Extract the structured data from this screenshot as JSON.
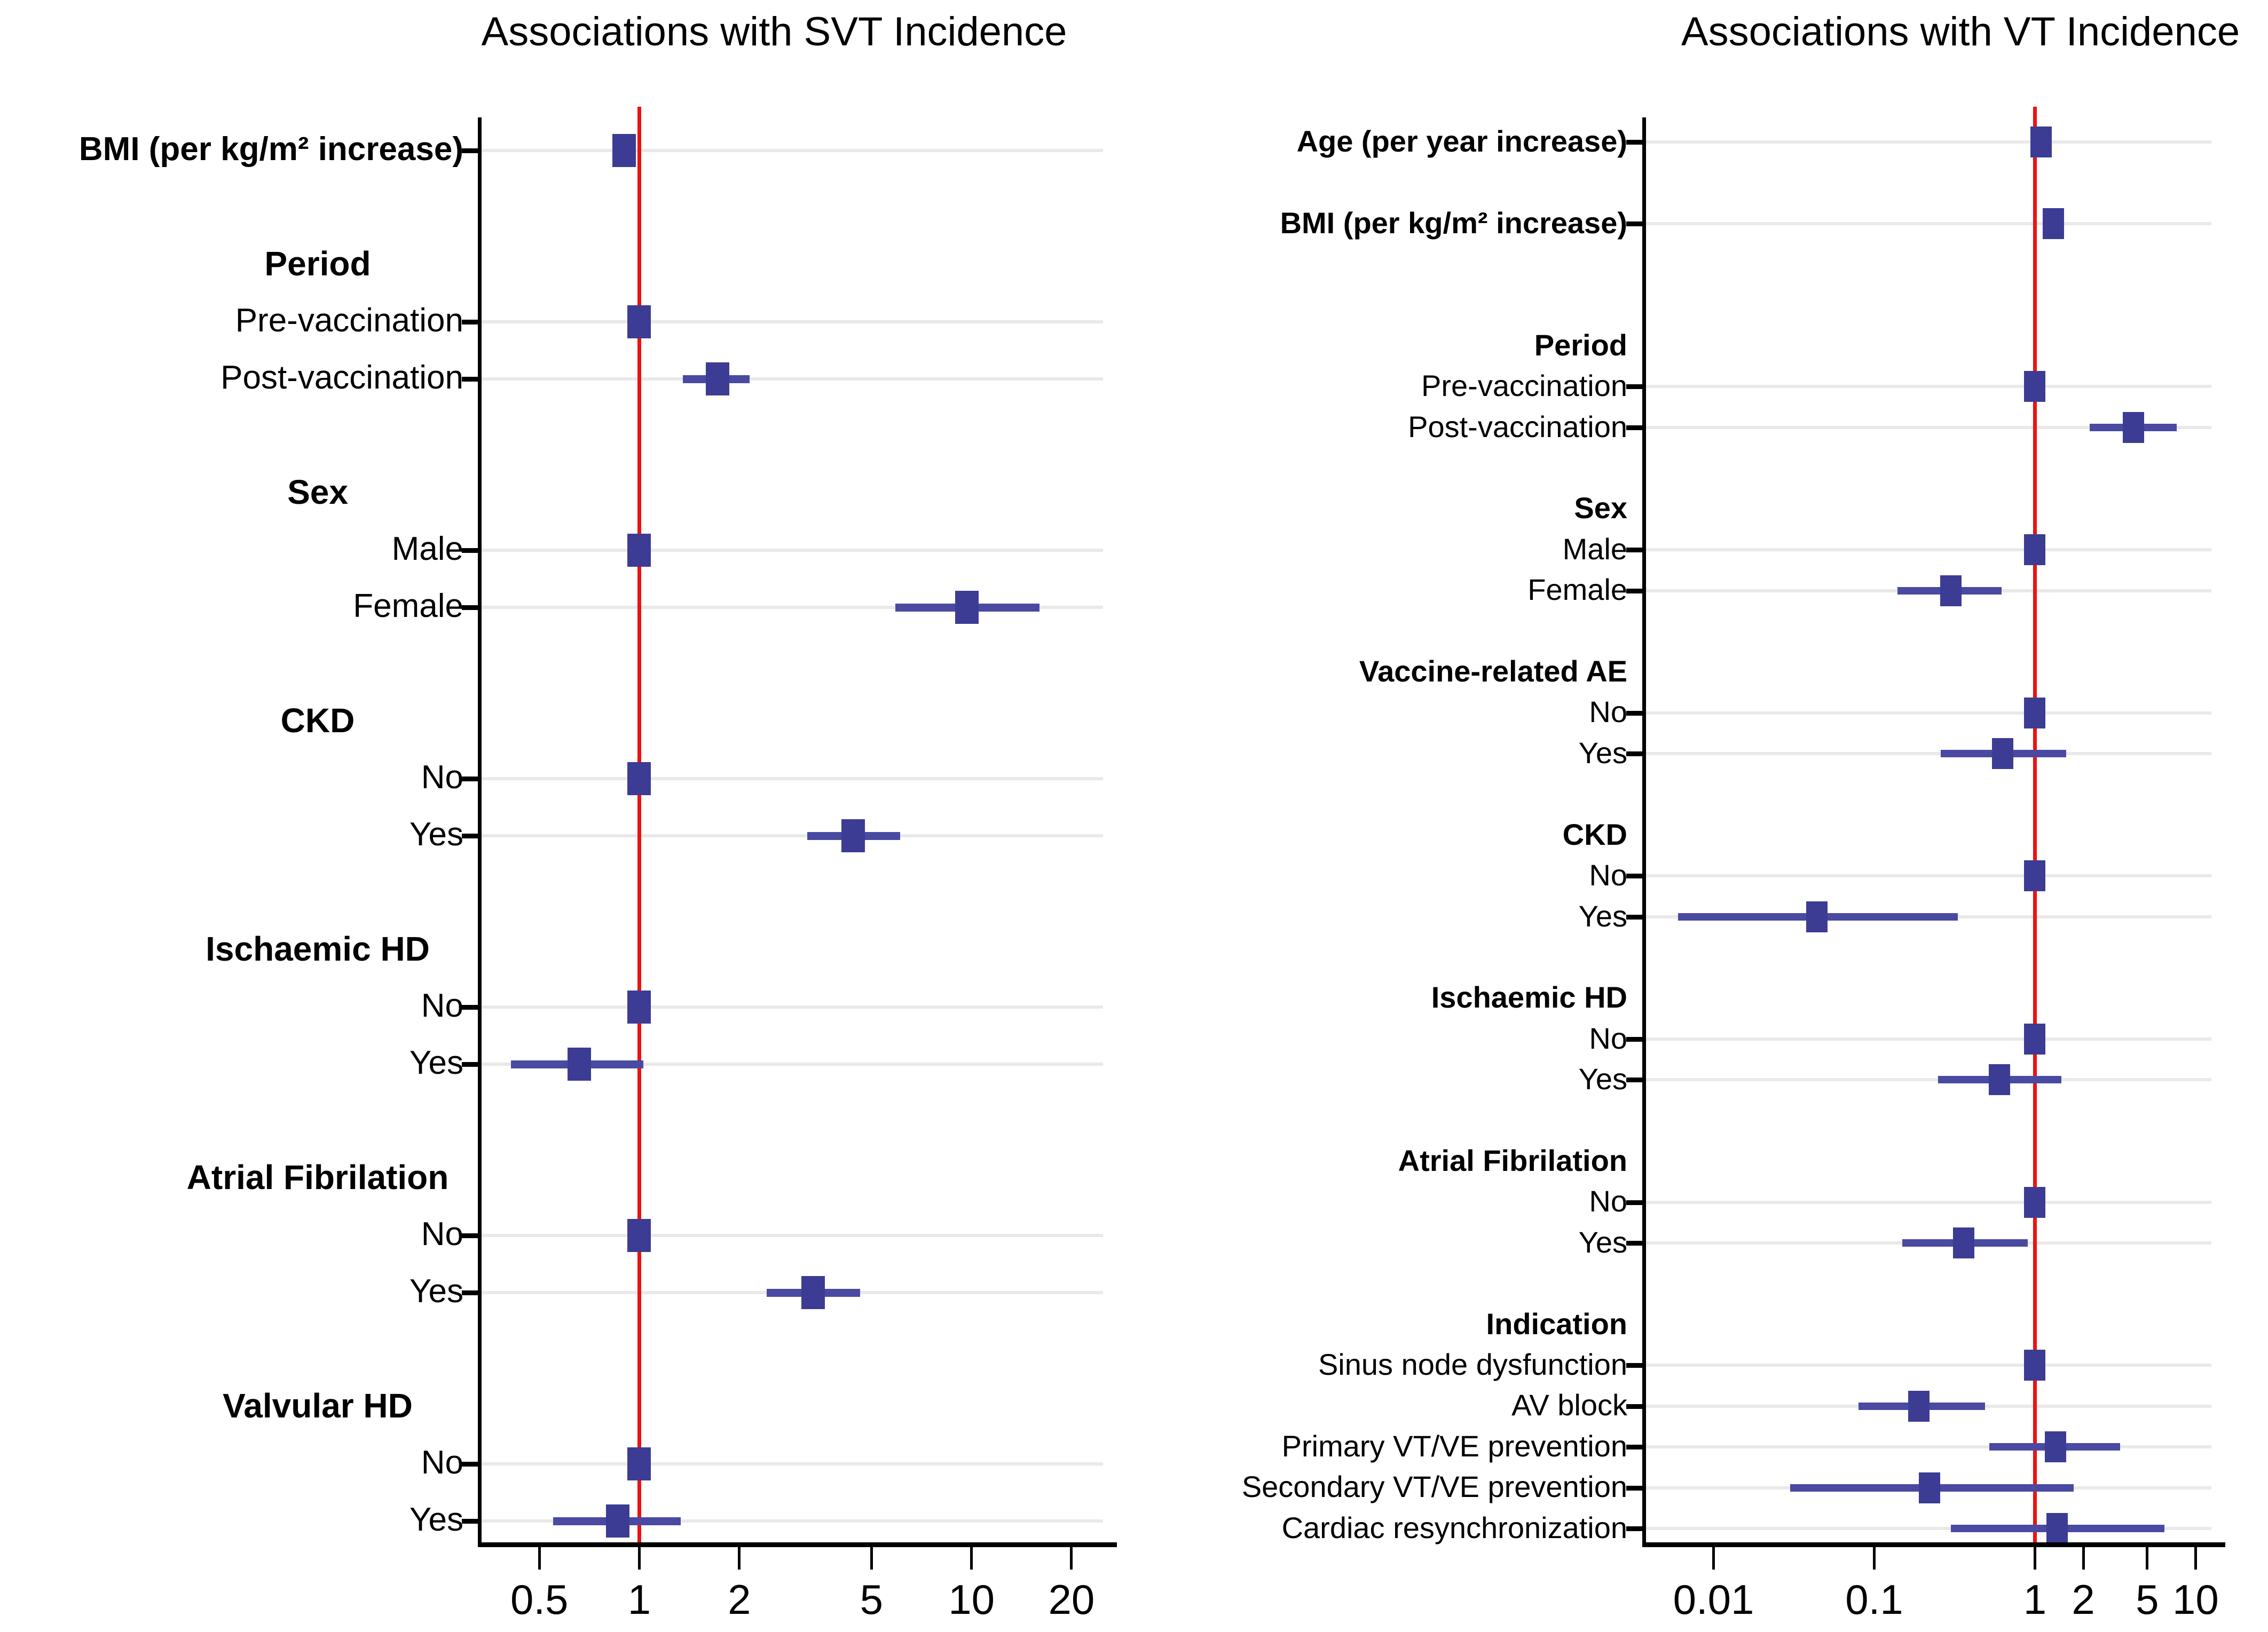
{
  "colors": {
    "marker": "#3c3c94",
    "ci_line": "#4a4aa2",
    "reference_line": "#ee1111",
    "gridline": "#e9e9e9",
    "axis": "#000000",
    "text": "#000000",
    "background": "#ffffff"
  },
  "chart_data": [
    {
      "type": "forest",
      "title": "Associations with SVT Incidence",
      "x_scale": "log",
      "x_ticks": [
        0.5,
        1,
        2,
        5,
        10,
        20
      ],
      "xlim": [
        0.335,
        27.4
      ],
      "reference_value": 1,
      "xlabel": "",
      "ylabel": "",
      "rows": [
        {
          "type": "data",
          "label": "BMI (per kg/m² increase)",
          "bold": true,
          "est": 0.9,
          "lo": 0.84,
          "hi": 0.96
        },
        {
          "type": "gap"
        },
        {
          "type": "header",
          "label": "Period"
        },
        {
          "type": "data",
          "label": "Pre-vaccination",
          "est": 1.0,
          "lo": 1.0,
          "hi": 1.0,
          "reference": true
        },
        {
          "type": "data",
          "label": "Post-vaccination",
          "est": 1.72,
          "lo": 1.35,
          "hi": 2.15
        },
        {
          "type": "gap"
        },
        {
          "type": "header",
          "label": "Sex"
        },
        {
          "type": "data",
          "label": "Male",
          "est": 1.0,
          "lo": 1.0,
          "hi": 1.0,
          "reference": true
        },
        {
          "type": "data",
          "label": "Female",
          "est": 9.7,
          "lo": 5.9,
          "hi": 16.0
        },
        {
          "type": "gap"
        },
        {
          "type": "header",
          "label": "CKD"
        },
        {
          "type": "data",
          "label": "No",
          "est": 1.0,
          "lo": 1.0,
          "hi": 1.0,
          "reference": true
        },
        {
          "type": "data",
          "label": "Yes",
          "est": 4.4,
          "lo": 3.2,
          "hi": 6.1
        },
        {
          "type": "gap"
        },
        {
          "type": "header",
          "label": "Ischaemic HD"
        },
        {
          "type": "data",
          "label": "No",
          "est": 1.0,
          "lo": 1.0,
          "hi": 1.0,
          "reference": true
        },
        {
          "type": "data",
          "label": "Yes",
          "est": 0.66,
          "lo": 0.41,
          "hi": 1.03
        },
        {
          "type": "gap"
        },
        {
          "type": "header",
          "label": "Atrial Fibrilation"
        },
        {
          "type": "data",
          "label": "No",
          "est": 1.0,
          "lo": 1.0,
          "hi": 1.0,
          "reference": true
        },
        {
          "type": "data",
          "label": "Yes",
          "est": 3.34,
          "lo": 2.42,
          "hi": 4.62
        },
        {
          "type": "gap"
        },
        {
          "type": "header",
          "label": "Valvular HD"
        },
        {
          "type": "data",
          "label": "No",
          "est": 1.0,
          "lo": 1.0,
          "hi": 1.0,
          "reference": true
        },
        {
          "type": "data",
          "label": "Yes",
          "est": 0.86,
          "lo": 0.55,
          "hi": 1.33
        }
      ]
    },
    {
      "type": "forest",
      "title": "Associations with VT Incidence",
      "x_scale": "log",
      "x_ticks": [
        0.01,
        0.1,
        1,
        2,
        5,
        10
      ],
      "xlim": [
        0.0038,
        15.3
      ],
      "reference_value": 1,
      "xlabel": "",
      "ylabel": "",
      "rows": [
        {
          "type": "data",
          "label": "Age (per year increase)",
          "bold": true,
          "est": 1.09,
          "lo": 1.02,
          "hi": 1.17
        },
        {
          "type": "gap"
        },
        {
          "type": "data",
          "label": "BMI (per kg/m² increase)",
          "bold": true,
          "est": 1.3,
          "lo": 1.15,
          "hi": 1.48
        },
        {
          "type": "gap"
        },
        {
          "type": "gap"
        },
        {
          "type": "header",
          "label": "Period"
        },
        {
          "type": "data",
          "label": "Pre-vaccination",
          "est": 1.0,
          "lo": 1.0,
          "hi": 1.0,
          "reference": true
        },
        {
          "type": "data",
          "label": "Post-vaccination",
          "est": 4.1,
          "lo": 2.2,
          "hi": 7.6
        },
        {
          "type": "gap"
        },
        {
          "type": "header",
          "label": "Sex"
        },
        {
          "type": "data",
          "label": "Male",
          "est": 1.0,
          "lo": 1.0,
          "hi": 1.0,
          "reference": true
        },
        {
          "type": "data",
          "label": "Female",
          "est": 0.3,
          "lo": 0.14,
          "hi": 0.62
        },
        {
          "type": "gap"
        },
        {
          "type": "header",
          "label": "Vaccine-related AE"
        },
        {
          "type": "data",
          "label": "No",
          "est": 1.0,
          "lo": 1.0,
          "hi": 1.0,
          "reference": true
        },
        {
          "type": "data",
          "label": "Yes",
          "est": 0.63,
          "lo": 0.26,
          "hi": 1.57
        },
        {
          "type": "gap"
        },
        {
          "type": "header",
          "label": "CKD"
        },
        {
          "type": "data",
          "label": "No",
          "est": 1.0,
          "lo": 1.0,
          "hi": 1.0,
          "reference": true
        },
        {
          "type": "data",
          "label": "Yes",
          "est": 0.044,
          "lo": 0.006,
          "hi": 0.33
        },
        {
          "type": "gap"
        },
        {
          "type": "header",
          "label": "Ischaemic HD"
        },
        {
          "type": "data",
          "label": "No",
          "est": 1.0,
          "lo": 1.0,
          "hi": 1.0,
          "reference": true
        },
        {
          "type": "data",
          "label": "Yes",
          "est": 0.6,
          "lo": 0.25,
          "hi": 1.46
        },
        {
          "type": "gap"
        },
        {
          "type": "header",
          "label": "Atrial Fibrilation"
        },
        {
          "type": "data",
          "label": "No",
          "est": 1.0,
          "lo": 1.0,
          "hi": 1.0,
          "reference": true
        },
        {
          "type": "data",
          "label": "Yes",
          "est": 0.36,
          "lo": 0.15,
          "hi": 0.9
        },
        {
          "type": "gap"
        },
        {
          "type": "header",
          "label": "Indication"
        },
        {
          "type": "data",
          "label": "Sinus node dysfunction",
          "est": 1.0,
          "lo": 1.0,
          "hi": 1.0,
          "reference": true
        },
        {
          "type": "data",
          "label": "AV block",
          "est": 0.19,
          "lo": 0.08,
          "hi": 0.49
        },
        {
          "type": "data",
          "label": "Primary VT/VE prevention",
          "est": 1.34,
          "lo": 0.52,
          "hi": 3.4
        },
        {
          "type": "data",
          "label": "Secondary VT/VE prevention",
          "est": 0.22,
          "lo": 0.03,
          "hi": 1.74
        },
        {
          "type": "data",
          "label": "Cardiac resynchronization",
          "est": 1.37,
          "lo": 0.3,
          "hi": 6.4
        }
      ]
    }
  ]
}
